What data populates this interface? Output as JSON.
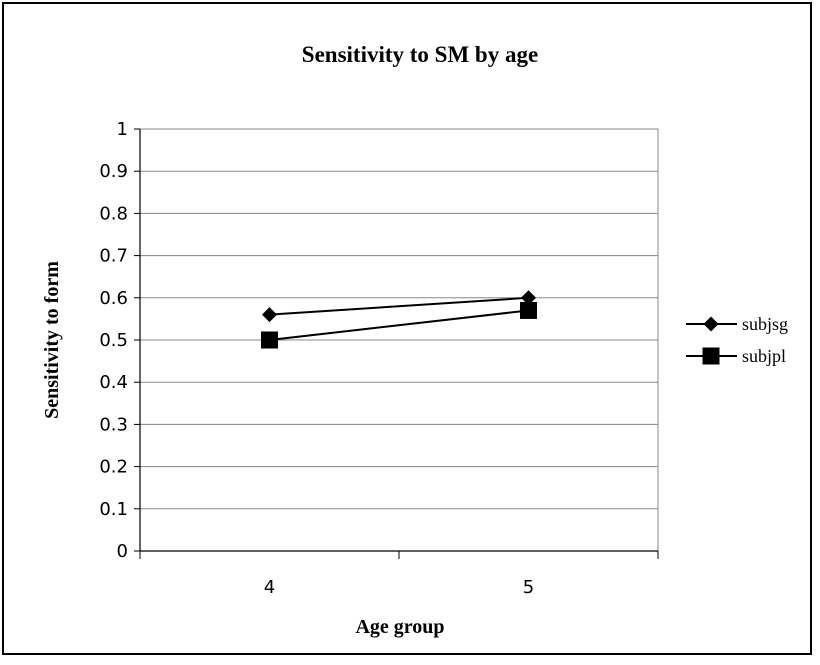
{
  "chart_data": {
    "type": "line",
    "title": "Sensitivity to SM by age",
    "xlabel": "Age group",
    "ylabel": "Sensitivity to form",
    "categories": [
      "4",
      "5"
    ],
    "ylim": [
      0,
      1
    ],
    "yticks": [
      "0",
      "0.1",
      "0.2",
      "0.3",
      "0.4",
      "0.5",
      "0.6",
      "0.7",
      "0.8",
      "0.9",
      "1"
    ],
    "grid": true,
    "legend_position": "right",
    "series": [
      {
        "name": "subjsg",
        "marker": "diamond",
        "color": "#000000",
        "values": [
          0.56,
          0.6
        ]
      },
      {
        "name": "subjpl",
        "marker": "square",
        "color": "#000000",
        "values": [
          0.5,
          0.57
        ]
      }
    ]
  }
}
